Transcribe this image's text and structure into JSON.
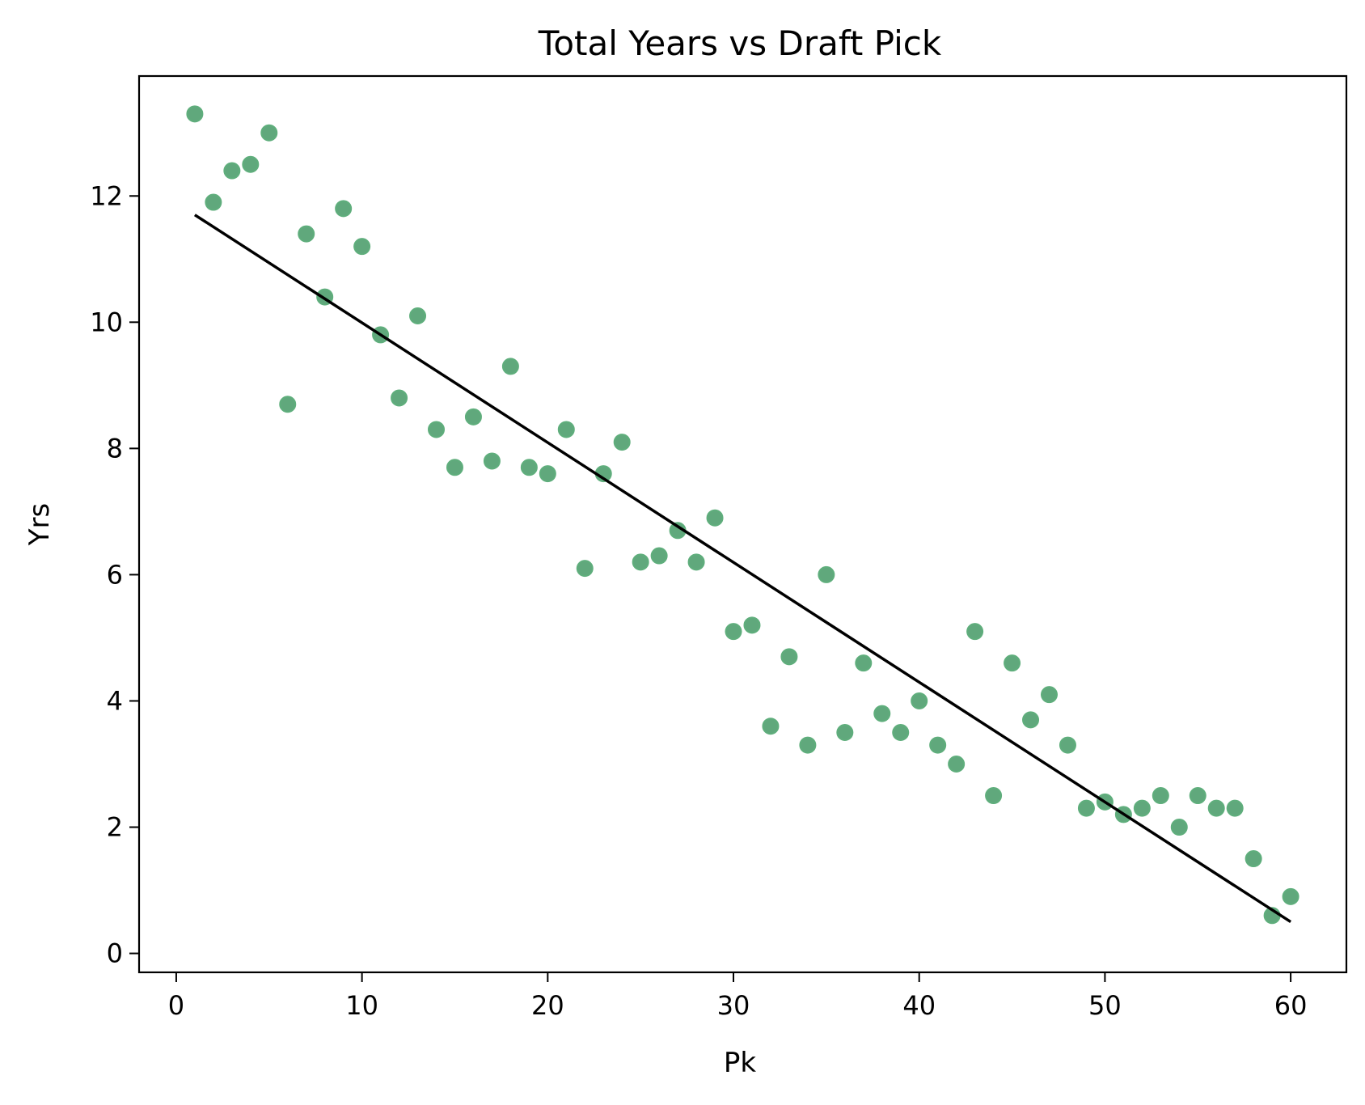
{
  "chart_data": {
    "type": "scatter",
    "title": "Total Years vs Draft Pick",
    "xlabel": "Pk",
    "ylabel": "Yrs",
    "xlim": [
      -2,
      63
    ],
    "ylim": [
      -0.3,
      13.9
    ],
    "x_ticks": [
      0,
      10,
      20,
      30,
      40,
      50,
      60
    ],
    "y_ticks": [
      0,
      2,
      4,
      6,
      8,
      10,
      12
    ],
    "grid": false,
    "legend": "none",
    "colors": {
      "points": "#4f9e6e",
      "line": "#000000"
    },
    "series": [
      {
        "type": "scatter",
        "points": [
          [
            1,
            13.3
          ],
          [
            2,
            11.9
          ],
          [
            3,
            12.4
          ],
          [
            4,
            12.5
          ],
          [
            5,
            13.0
          ],
          [
            6,
            8.7
          ],
          [
            7,
            11.4
          ],
          [
            8,
            10.4
          ],
          [
            9,
            11.8
          ],
          [
            10,
            11.2
          ],
          [
            11,
            9.8
          ],
          [
            12,
            8.8
          ],
          [
            13,
            10.1
          ],
          [
            14,
            8.3
          ],
          [
            15,
            7.7
          ],
          [
            16,
            8.5
          ],
          [
            17,
            7.8
          ],
          [
            18,
            9.3
          ],
          [
            19,
            7.7
          ],
          [
            20,
            7.6
          ],
          [
            21,
            8.3
          ],
          [
            22,
            6.1
          ],
          [
            23,
            7.6
          ],
          [
            24,
            8.1
          ],
          [
            25,
            6.2
          ],
          [
            26,
            6.3
          ],
          [
            27,
            6.7
          ],
          [
            28,
            6.2
          ],
          [
            29,
            6.9
          ],
          [
            30,
            5.1
          ],
          [
            31,
            5.2
          ],
          [
            32,
            3.6
          ],
          [
            33,
            4.7
          ],
          [
            34,
            3.3
          ],
          [
            35,
            6.0
          ],
          [
            36,
            3.5
          ],
          [
            37,
            4.6
          ],
          [
            38,
            3.8
          ],
          [
            39,
            3.5
          ],
          [
            40,
            4.0
          ],
          [
            41,
            3.3
          ],
          [
            42,
            3.0
          ],
          [
            43,
            5.1
          ],
          [
            44,
            2.5
          ],
          [
            45,
            4.6
          ],
          [
            46,
            3.7
          ],
          [
            47,
            4.1
          ],
          [
            48,
            3.3
          ],
          [
            49,
            2.3
          ],
          [
            50,
            2.4
          ],
          [
            51,
            2.2
          ],
          [
            52,
            2.3
          ],
          [
            53,
            2.5
          ],
          [
            54,
            2.0
          ],
          [
            55,
            2.5
          ],
          [
            56,
            2.3
          ],
          [
            57,
            2.3
          ],
          [
            58,
            1.5
          ],
          [
            59,
            0.6
          ],
          [
            60,
            0.9
          ]
        ]
      },
      {
        "type": "line",
        "points": [
          [
            1,
            11.7
          ],
          [
            60,
            0.5
          ]
        ]
      }
    ]
  }
}
